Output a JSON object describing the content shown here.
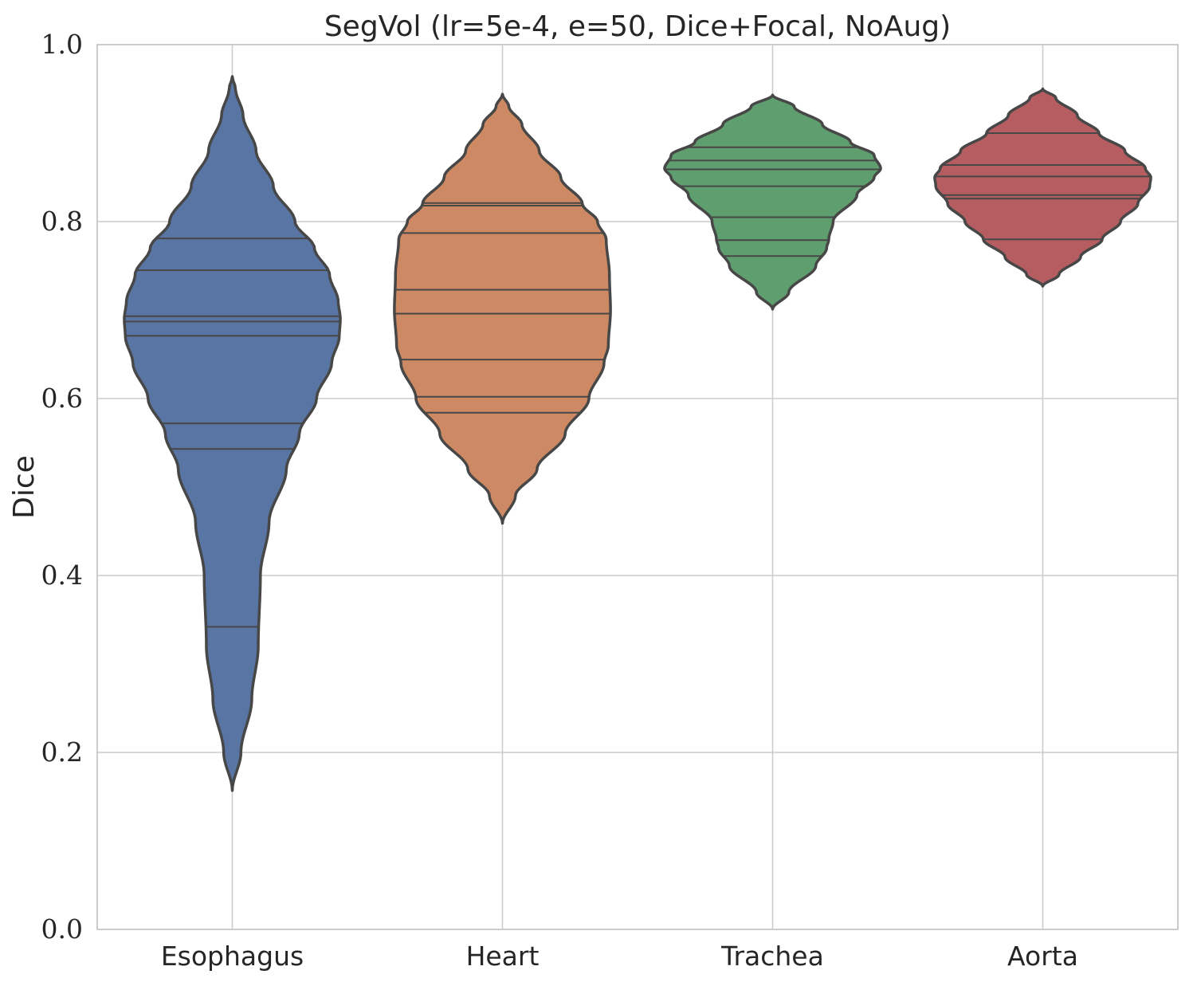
{
  "chart_data": {
    "type": "violin",
    "title": "SegVol (lr=5e-4, e=50, Dice+Focal, NoAug)",
    "xlabel": "",
    "ylabel": "Dice",
    "ylim": [
      0.0,
      1.0
    ],
    "yticks": [
      "0.0",
      "0.2",
      "0.4",
      "0.6",
      "0.8",
      "1.0"
    ],
    "grid": true,
    "inner": "stick",
    "categories": [
      "Esophagus",
      "Heart",
      "Trachea",
      "Aorta"
    ],
    "colors": [
      "#5875a4",
      "#cc8963",
      "#5f9e6e",
      "#b55d60"
    ],
    "series": [
      {
        "category": "Esophagus",
        "min": 0.157,
        "max": 0.964,
        "observations": [
          0.342,
          0.543,
          0.572,
          0.671,
          0.687,
          0.693,
          0.745,
          0.781
        ],
        "density": [
          [
            0.157,
            0.0
          ],
          [
            0.2,
            0.08
          ],
          [
            0.26,
            0.18
          ],
          [
            0.32,
            0.24
          ],
          [
            0.4,
            0.26
          ],
          [
            0.46,
            0.34
          ],
          [
            0.52,
            0.5
          ],
          [
            0.56,
            0.62
          ],
          [
            0.6,
            0.78
          ],
          [
            0.64,
            0.92
          ],
          [
            0.67,
            0.99
          ],
          [
            0.69,
            1.0
          ],
          [
            0.71,
            0.98
          ],
          [
            0.74,
            0.9
          ],
          [
            0.77,
            0.76
          ],
          [
            0.8,
            0.58
          ],
          [
            0.84,
            0.38
          ],
          [
            0.88,
            0.22
          ],
          [
            0.92,
            0.1
          ],
          [
            0.95,
            0.03
          ],
          [
            0.964,
            0.0
          ]
        ]
      },
      {
        "category": "Heart",
        "min": 0.459,
        "max": 0.944,
        "observations": [
          0.584,
          0.602,
          0.644,
          0.696,
          0.723,
          0.787,
          0.818,
          0.821
        ],
        "density": [
          [
            0.459,
            0.0
          ],
          [
            0.49,
            0.12
          ],
          [
            0.52,
            0.32
          ],
          [
            0.56,
            0.58
          ],
          [
            0.6,
            0.8
          ],
          [
            0.64,
            0.94
          ],
          [
            0.66,
            0.98
          ],
          [
            0.7,
            1.0
          ],
          [
            0.74,
            0.99
          ],
          [
            0.78,
            0.96
          ],
          [
            0.8,
            0.88
          ],
          [
            0.82,
            0.74
          ],
          [
            0.85,
            0.54
          ],
          [
            0.88,
            0.34
          ],
          [
            0.91,
            0.18
          ],
          [
            0.93,
            0.06
          ],
          [
            0.944,
            0.0
          ]
        ]
      },
      {
        "category": "Trachea",
        "min": 0.701,
        "max": 0.943,
        "observations": [
          0.761,
          0.779,
          0.805,
          0.84,
          0.859,
          0.869,
          0.884
        ],
        "density": [
          [
            0.701,
            0.0
          ],
          [
            0.72,
            0.15
          ],
          [
            0.75,
            0.4
          ],
          [
            0.77,
            0.5
          ],
          [
            0.78,
            0.52
          ],
          [
            0.8,
            0.56
          ],
          [
            0.83,
            0.78
          ],
          [
            0.85,
            0.94
          ],
          [
            0.86,
            1.0
          ],
          [
            0.875,
            0.94
          ],
          [
            0.89,
            0.72
          ],
          [
            0.91,
            0.46
          ],
          [
            0.93,
            0.2
          ],
          [
            0.943,
            0.0
          ]
        ]
      },
      {
        "category": "Aorta",
        "min": 0.727,
        "max": 0.95,
        "observations": [
          0.78,
          0.826,
          0.83,
          0.851,
          0.864,
          0.9
        ],
        "density": [
          [
            0.727,
            0.0
          ],
          [
            0.74,
            0.15
          ],
          [
            0.76,
            0.35
          ],
          [
            0.78,
            0.55
          ],
          [
            0.8,
            0.72
          ],
          [
            0.82,
            0.88
          ],
          [
            0.84,
            0.99
          ],
          [
            0.85,
            1.0
          ],
          [
            0.86,
            0.95
          ],
          [
            0.88,
            0.76
          ],
          [
            0.9,
            0.52
          ],
          [
            0.92,
            0.32
          ],
          [
            0.94,
            0.12
          ],
          [
            0.95,
            0.0
          ]
        ]
      }
    ]
  }
}
